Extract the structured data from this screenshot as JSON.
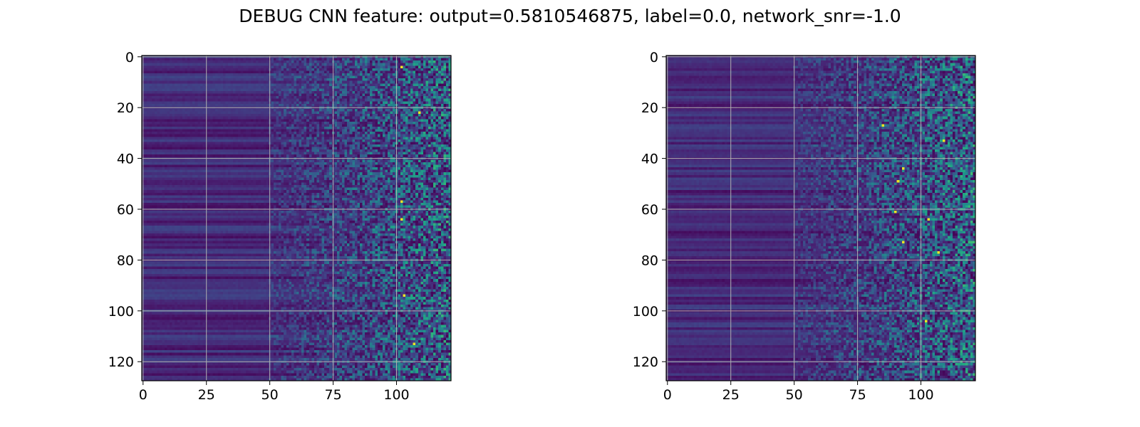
{
  "figure_title": "DEBUG CNN feature: output=0.5810546875, label=0.0, network_snr=-1.0",
  "colormap": "viridis",
  "grid": true,
  "chart_data": [
    {
      "type": "heatmap",
      "panel": "left",
      "title": "",
      "xlabel": "",
      "ylabel": "",
      "n_rows": 128,
      "n_cols": 122,
      "xlim": [
        0,
        121
      ],
      "ylim": [
        127,
        0
      ],
      "xticks": [
        0,
        25,
        50,
        75,
        100
      ],
      "yticks": [
        0,
        20,
        40,
        60,
        80,
        100,
        120
      ],
      "xtick_labels": [
        "0",
        "25",
        "50",
        "75",
        "100"
      ],
      "ytick_labels": [
        "0",
        "20",
        "40",
        "60",
        "80",
        "100",
        "120"
      ],
      "bright_cells": [
        [
          4,
          102
        ],
        [
          57,
          102
        ],
        [
          64,
          102
        ],
        [
          113,
          107
        ],
        [
          94,
          103
        ],
        [
          22,
          109
        ]
      ]
    },
    {
      "type": "heatmap",
      "panel": "right",
      "title": "",
      "xlabel": "",
      "ylabel": "",
      "n_rows": 128,
      "n_cols": 122,
      "xlim": [
        0,
        121
      ],
      "ylim": [
        127,
        0
      ],
      "xticks": [
        0,
        25,
        50,
        75,
        100
      ],
      "yticks": [
        0,
        20,
        40,
        60,
        80,
        100,
        120
      ],
      "xtick_labels": [
        "0",
        "25",
        "50",
        "75",
        "100"
      ],
      "ytick_labels": [
        "0",
        "20",
        "40",
        "60",
        "80",
        "100",
        "120"
      ],
      "bright_cells": [
        [
          27,
          85
        ],
        [
          49,
          91
        ],
        [
          61,
          90
        ],
        [
          64,
          103
        ],
        [
          73,
          93
        ],
        [
          77,
          107
        ],
        [
          104,
          102
        ],
        [
          44,
          93
        ],
        [
          33,
          109
        ]
      ]
    }
  ]
}
